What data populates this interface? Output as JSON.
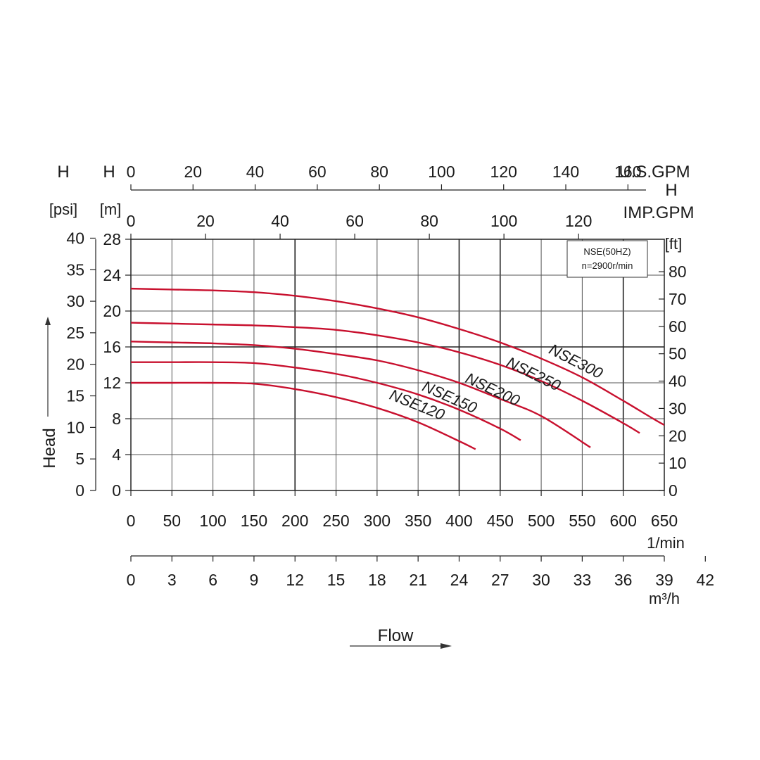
{
  "chart_data": {
    "type": "line",
    "headers": {
      "left_psi": {
        "symbol": "H",
        "unit": "[psi]"
      },
      "left_m": {
        "symbol": "H",
        "unit": "[m]"
      },
      "right_ft": {
        "unit": "[ft]"
      },
      "top_h": "H"
    },
    "axes": {
      "x_main": {
        "unit": "1/min",
        "range": [
          0,
          650
        ],
        "ticks": [
          0,
          50,
          100,
          150,
          200,
          250,
          300,
          350,
          400,
          450,
          500,
          550,
          600,
          650
        ]
      },
      "x_m3h": {
        "unit": "m³/h",
        "ticks": [
          0,
          3,
          6,
          9,
          12,
          15,
          18,
          21,
          24,
          27,
          30,
          33,
          36,
          39,
          42
        ]
      },
      "x_usgpm": {
        "unit": "U.S.GPM",
        "ticks": [
          0,
          20,
          40,
          60,
          80,
          100,
          120,
          140,
          160
        ]
      },
      "x_impgpm": {
        "unit": "IMP.GPM",
        "ticks": [
          0,
          20,
          40,
          60,
          80,
          100,
          120
        ]
      },
      "y_m": {
        "range": [
          0,
          28
        ],
        "ticks": [
          0,
          4,
          8,
          12,
          16,
          20,
          24,
          28
        ]
      },
      "y_psi": {
        "ticks": [
          0,
          5,
          10,
          15,
          20,
          25,
          30,
          35,
          40
        ]
      },
      "y_ft": {
        "ticks": [
          0,
          10,
          20,
          30,
          40,
          50,
          60,
          70,
          80
        ]
      },
      "y_label": "Head",
      "x_label": "Flow"
    },
    "note": {
      "line1": "NSE(50HZ)",
      "line2": "n=2900r/min"
    },
    "series": [
      {
        "name": "NSE120",
        "color": "#c8102e",
        "x": [
          0,
          50,
          100,
          150,
          200,
          250,
          300,
          350,
          400,
          420
        ],
        "y": [
          12.0,
          12.0,
          12.0,
          11.9,
          11.3,
          10.4,
          9.2,
          7.6,
          5.5,
          4.6
        ]
      },
      {
        "name": "NSE150",
        "color": "#c8102e",
        "x": [
          0,
          50,
          100,
          150,
          200,
          250,
          300,
          350,
          400,
          450,
          475
        ],
        "y": [
          14.3,
          14.3,
          14.3,
          14.2,
          13.7,
          13.0,
          12.0,
          10.7,
          9.0,
          6.9,
          5.6
        ]
      },
      {
        "name": "NSE200",
        "color": "#c8102e",
        "x": [
          0,
          50,
          100,
          150,
          200,
          250,
          300,
          350,
          400,
          450,
          500,
          560
        ],
        "y": [
          16.6,
          16.5,
          16.4,
          16.2,
          15.8,
          15.2,
          14.5,
          13.4,
          12.0,
          10.2,
          8.3,
          4.8
        ]
      },
      {
        "name": "NSE250",
        "color": "#c8102e",
        "x": [
          0,
          50,
          100,
          150,
          200,
          250,
          300,
          350,
          400,
          450,
          500,
          550,
          600,
          620
        ],
        "y": [
          18.7,
          18.6,
          18.5,
          18.4,
          18.2,
          17.9,
          17.3,
          16.5,
          15.4,
          14.0,
          12.2,
          10.0,
          7.5,
          6.4
        ]
      },
      {
        "name": "NSE300",
        "color": "#c8102e",
        "x": [
          0,
          50,
          100,
          150,
          200,
          250,
          300,
          350,
          400,
          450,
          500,
          550,
          600,
          650,
          675
        ],
        "y": [
          22.5,
          22.4,
          22.3,
          22.1,
          21.7,
          21.1,
          20.3,
          19.3,
          18.0,
          16.5,
          14.7,
          12.6,
          10.0,
          7.3,
          6.5
        ]
      }
    ]
  }
}
